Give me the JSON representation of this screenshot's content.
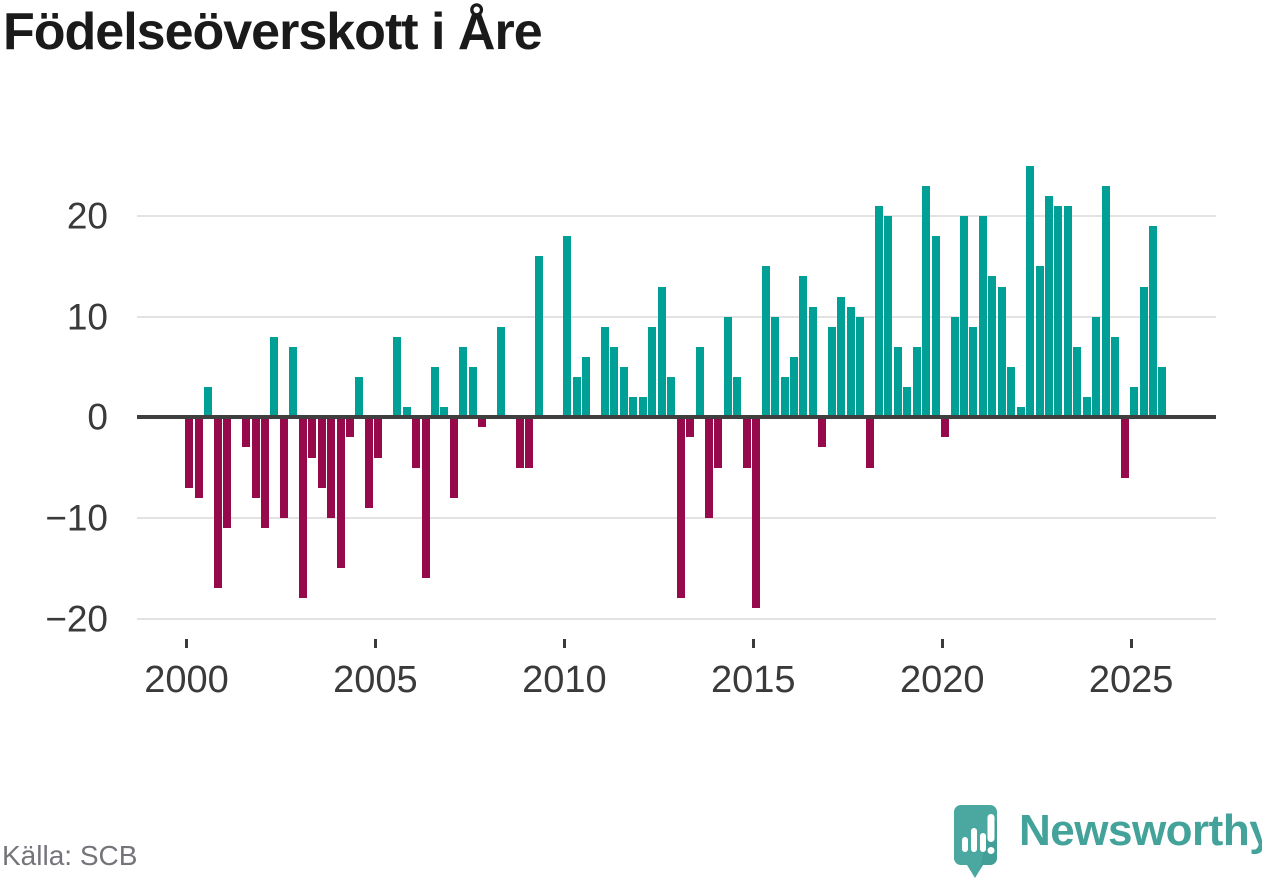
{
  "title": "Födelseöverskott i Åre",
  "source": "Källa: SCB",
  "logo": {
    "brand": "Newsworthy"
  },
  "colors": {
    "positive": "#00a096",
    "negative": "#96094b",
    "zero_line": "#3f3f3f",
    "gridline": "#e3e3e3",
    "axis_text": "#3a3a3a",
    "logo_teal": "#43a29a",
    "logo_icon_teal": "#4aa8a0"
  },
  "chart_data": {
    "type": "bar",
    "title": "Födelseöverskott i Åre",
    "frequency": "quarterly",
    "x_start": "2000-Q1",
    "x_end": "2025-Q4",
    "values": [
      -7,
      -8,
      3,
      -17,
      -11,
      0,
      -3,
      -8,
      -11,
      8,
      -10,
      7,
      -18,
      -4,
      -7,
      -10,
      -15,
      -2,
      4,
      -9,
      -4,
      0,
      8,
      1,
      -5,
      -16,
      5,
      1,
      -8,
      7,
      5,
      -1,
      0,
      9,
      0,
      -5,
      -5,
      16,
      0,
      0,
      18,
      4,
      6,
      0,
      9,
      7,
      5,
      2,
      2,
      9,
      13,
      4,
      -18,
      -2,
      7,
      -10,
      -5,
      10,
      4,
      -5,
      -19,
      15,
      10,
      4,
      6,
      14,
      11,
      -3,
      9,
      12,
      11,
      10,
      -5,
      21,
      20,
      7,
      3,
      7,
      23,
      18,
      -2,
      10,
      20,
      9,
      20,
      14,
      13,
      5,
      1,
      25,
      15,
      22,
      21,
      21,
      7,
      2,
      10,
      23,
      8,
      -6,
      3,
      13,
      19,
      5
    ],
    "x_tick_labels": [
      "2000",
      "2005",
      "2010",
      "2015",
      "2020",
      "2025"
    ],
    "y_ticks": [
      20,
      10,
      0,
      -10,
      -20
    ],
    "y_tick_labels": [
      "20",
      "10",
      "0",
      "−10",
      "−20"
    ],
    "ylim": [
      -20,
      25
    ],
    "grid": true,
    "legend": false,
    "positive_color": "#00a096",
    "negative_color": "#96094b"
  }
}
